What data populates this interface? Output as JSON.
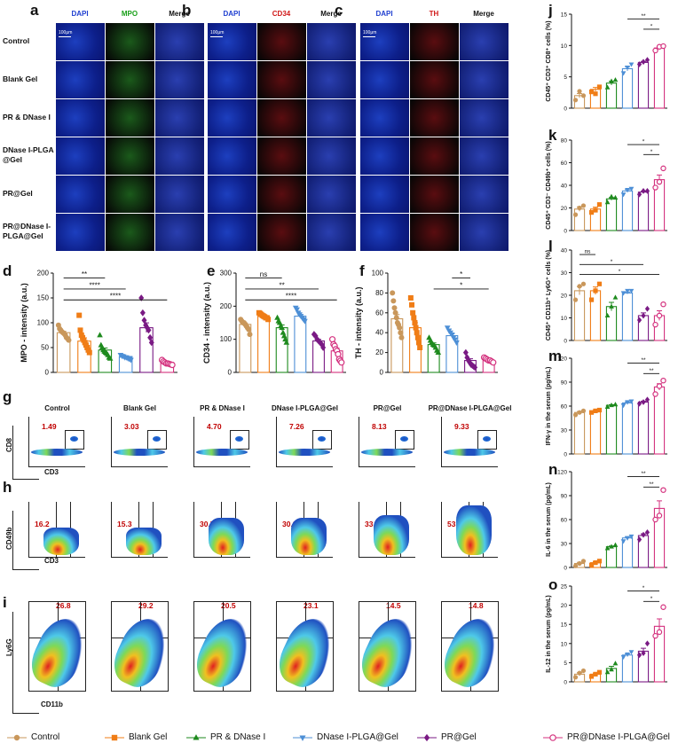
{
  "panel_letters": {
    "a": "a",
    "b": "b",
    "c": "c",
    "d": "d",
    "e": "e",
    "f": "f",
    "g": "g",
    "h": "h",
    "i": "i",
    "j": "j",
    "k": "k",
    "l": "l",
    "m": "m",
    "n": "n",
    "o": "o"
  },
  "micro": {
    "rows": [
      "Control",
      "Blank Gel",
      "PR & DNase I",
      "DNase I-PLGA\n@Gel",
      "PR@Gel",
      "PR@DNase I-\nPLGA@Gel"
    ],
    "scale_bar": "100μm",
    "panels": [
      {
        "letter": "a",
        "headers": [
          "DAPI",
          "MPO",
          "Merge"
        ],
        "header_colors": [
          "#1f3fd0",
          "#1aa01a",
          "#111111"
        ],
        "marker_color": "#1b5a1b"
      },
      {
        "letter": "b",
        "headers": [
          "DAPI",
          "CD34",
          "Merge"
        ],
        "header_colors": [
          "#1f3fd0",
          "#d01818",
          "#111111"
        ],
        "marker_color": "#5a0d10"
      },
      {
        "letter": "c",
        "headers": [
          "DAPI",
          "TH",
          "Merge"
        ],
        "header_colors": [
          "#1f3fd0",
          "#d01818",
          "#111111"
        ],
        "marker_color": "#5a0d10"
      }
    ]
  },
  "colors": [
    "#c9975b",
    "#f07d16",
    "#1e8a1e",
    "#4d8fd6",
    "#7a1a84",
    "#d4317e"
  ],
  "legend": {
    "items": [
      "Control",
      "Blank Gel",
      "PR & DNase I",
      "DNase I-PLGA@Gel",
      "PR@Gel",
      "PR@DNase I-PLGA@Gel"
    ],
    "markers": [
      "circle",
      "square",
      "triangle-up",
      "triangle-down",
      "diamond",
      "circle-open"
    ]
  },
  "flow": {
    "groups": [
      "Control",
      "Blank Gel",
      "PR & DNase I",
      "DNase I-PLGA@Gel",
      "PR@Gel",
      "PR@DNase I-PLGA@Gel"
    ],
    "g": {
      "values": [
        "1.49",
        "3.03",
        "4.70",
        "7.26",
        "8.13",
        "9.33"
      ],
      "xlabel": "CD3",
      "ylabel": "CD8"
    },
    "h": {
      "values": [
        "16.2",
        "15.3",
        "30.7",
        "30.9",
        "33.3",
        "53.9"
      ],
      "xlabel": "CD3",
      "ylabel": "CD49b"
    },
    "i": {
      "values": [
        "26.8",
        "29.2",
        "20.5",
        "23.1",
        "14.5",
        "14.8"
      ],
      "xlabel": "CD11b",
      "ylabel": "Ly6G"
    }
  },
  "chart_data": [
    {
      "id": "d",
      "type": "bar",
      "ylabel": "MPO - intensity (a.u.)",
      "ylim": [
        0,
        200
      ],
      "yticks": [
        0,
        50,
        100,
        150,
        200
      ],
      "values": [
        80,
        63,
        45,
        32,
        90,
        20
      ],
      "points": [
        [
          95,
          88,
          85,
          82,
          80,
          78,
          75,
          70,
          68,
          65
        ],
        [
          115,
          85,
          75,
          70,
          65,
          60,
          55,
          50,
          45,
          40
        ],
        [
          75,
          55,
          50,
          45,
          42,
          40,
          38,
          35,
          30,
          28
        ],
        [
          35,
          33,
          32,
          30,
          30,
          28,
          27,
          25
        ],
        [
          150,
          120,
          105,
          95,
          90,
          85,
          70,
          60
        ],
        [
          25,
          22,
          20,
          18,
          18,
          17,
          16,
          15
        ]
      ],
      "sig": [
        {
          "from": 0,
          "to": 2,
          "label": "**"
        },
        {
          "from": 0,
          "to": 3,
          "label": "****"
        },
        {
          "from": 0,
          "to": 5,
          "label": "****"
        }
      ]
    },
    {
      "id": "e",
      "type": "bar",
      "ylabel": "CD34 - intensity (a.u.)",
      "ylim": [
        0,
        300
      ],
      "yticks": [
        0,
        100,
        200,
        300
      ],
      "values": [
        145,
        170,
        135,
        170,
        95,
        65
      ],
      "points": [
        [
          160,
          155,
          150,
          150,
          145,
          140,
          135,
          130,
          115
        ],
        [
          180,
          178,
          175,
          172,
          170,
          168,
          165,
          165,
          160
        ],
        [
          165,
          155,
          150,
          140,
          135,
          120,
          110,
          100,
          90
        ],
        [
          195,
          190,
          180,
          175,
          170,
          165,
          160,
          155
        ],
        [
          115,
          110,
          100,
          95,
          90,
          85,
          75
        ],
        [
          100,
          85,
          80,
          70,
          65,
          55,
          40,
          35,
          30
        ]
      ],
      "sig": [
        {
          "from": 0,
          "to": 2,
          "label": "ns"
        },
        {
          "from": 0,
          "to": 4,
          "label": "**"
        },
        {
          "from": 0,
          "to": 5,
          "label": "****"
        }
      ]
    },
    {
      "id": "f",
      "type": "bar",
      "ylabel": "TH - intensity (a.u.)",
      "ylim": [
        0,
        100
      ],
      "yticks": [
        0,
        20,
        40,
        60,
        80,
        100
      ],
      "values": [
        54,
        45,
        28,
        37,
        12,
        12
      ],
      "points": [
        [
          80,
          72,
          65,
          60,
          55,
          50,
          48,
          45,
          40,
          35
        ],
        [
          75,
          68,
          60,
          55,
          50,
          45,
          40,
          35,
          30,
          25
        ],
        [
          35,
          32,
          30,
          28,
          27,
          25,
          22,
          20
        ],
        [
          45,
          42,
          40,
          38,
          35,
          33,
          30
        ],
        [
          20,
          15,
          12,
          10,
          8,
          7,
          6,
          5
        ],
        [
          15,
          14,
          13,
          12,
          12,
          11,
          10
        ]
      ],
      "sig": [
        {
          "from": 3,
          "to": 4,
          "label": "*"
        },
        {
          "from": 2,
          "to": 5,
          "label": "*"
        }
      ]
    },
    {
      "id": "j",
      "type": "bar",
      "ylabel": "CD45⁺ CD3⁺ CD8⁺ cells (%)",
      "ylim": [
        0,
        15
      ],
      "yticks": [
        0,
        5,
        10,
        15
      ],
      "values": [
        2,
        3,
        4,
        6.3,
        7.3,
        9.6
      ],
      "points": [
        [
          1.3,
          2.7,
          2
        ],
        [
          2.6,
          2.3,
          3.4
        ],
        [
          3.3,
          4.3,
          4.5
        ],
        [
          5.6,
          6.5,
          7
        ],
        [
          7,
          7.4,
          7.7
        ],
        [
          9.2,
          9.8,
          9.9
        ]
      ],
      "sig": [
        {
          "from": 3,
          "to": 5,
          "label": "**"
        },
        {
          "from": 4,
          "to": 5,
          "label": "*"
        }
      ]
    },
    {
      "id": "k",
      "type": "bar",
      "ylabel": "CD45⁺ CD3⁻ CD49b⁺ cells (%)",
      "ylim": [
        0,
        80
      ],
      "yticks": [
        0,
        20,
        40,
        60,
        80
      ],
      "values": [
        19,
        19,
        28,
        35,
        34,
        45
      ],
      "points": [
        [
          14,
          20,
          22
        ],
        [
          16,
          18,
          23
        ],
        [
          25,
          30,
          29
        ],
        [
          32,
          36,
          37
        ],
        [
          32,
          35,
          35
        ],
        [
          38,
          43,
          55
        ]
      ],
      "sig": [
        {
          "from": 3,
          "to": 5,
          "label": "*"
        },
        {
          "from": 4,
          "to": 5,
          "label": "*"
        }
      ]
    },
    {
      "id": "l",
      "type": "bar",
      "ylabel": "CD45⁺ CD11b⁺ Ly6G⁺ cells (%)",
      "ylim": [
        0,
        40
      ],
      "yticks": [
        0,
        10,
        20,
        30,
        40
      ],
      "values": [
        22,
        22,
        15,
        21,
        11,
        11
      ],
      "points": [
        [
          18,
          24,
          25
        ],
        [
          18,
          22,
          25
        ],
        [
          11,
          15,
          19
        ],
        [
          21,
          22,
          22
        ],
        [
          9,
          11,
          14
        ],
        [
          7,
          11,
          16
        ]
      ],
      "sig": [
        {
          "from": 0,
          "to": 1,
          "label": "ns"
        },
        {
          "from": 0,
          "to": 4,
          "label": "*"
        },
        {
          "from": 0,
          "to": 5,
          "label": "*"
        }
      ]
    },
    {
      "id": "m",
      "type": "bar",
      "ylabel": "IFN-γ in the serum  (pg/mL)",
      "ylim": [
        0,
        120
      ],
      "yticks": [
        0,
        30,
        60,
        90,
        120
      ],
      "values": [
        52,
        54,
        61,
        64,
        65,
        84
      ],
      "points": [
        [
          49,
          52,
          54
        ],
        [
          52,
          54,
          55
        ],
        [
          59,
          61,
          62
        ],
        [
          61,
          65,
          66
        ],
        [
          63,
          65,
          68
        ],
        [
          75,
          85,
          92
        ]
      ],
      "sig": [
        {
          "from": 3,
          "to": 5,
          "label": "**"
        },
        {
          "from": 4,
          "to": 5,
          "label": "**"
        }
      ]
    },
    {
      "id": "n",
      "type": "bar",
      "ylabel": "IL-6 in the serum (pg/mL)",
      "ylim": [
        0,
        120
      ],
      "yticks": [
        0,
        30,
        60,
        90,
        120
      ],
      "values": [
        5,
        6,
        26,
        37,
        40,
        74
      ],
      "points": [
        [
          2,
          5,
          8
        ],
        [
          3,
          6,
          8
        ],
        [
          24,
          26,
          28
        ],
        [
          33,
          37,
          39
        ],
        [
          35,
          41,
          44
        ],
        [
          60,
          65,
          97
        ]
      ],
      "sig": [
        {
          "from": 3,
          "to": 5,
          "label": "**"
        },
        {
          "from": 4,
          "to": 5,
          "label": "**"
        }
      ]
    },
    {
      "id": "o",
      "type": "bar",
      "ylabel": "IL-12 in the serum (pg/mL)",
      "ylim": [
        0,
        25
      ],
      "yticks": [
        0,
        5,
        10,
        15,
        20,
        25
      ],
      "values": [
        2,
        2,
        3.5,
        7,
        8,
        14.5
      ],
      "points": [
        [
          1.2,
          2.3,
          2.9
        ],
        [
          1.4,
          2,
          2.5
        ],
        [
          2.5,
          3.2,
          4.8
        ],
        [
          6.5,
          7.2,
          7.8
        ],
        [
          7,
          7.5,
          10
        ],
        [
          12,
          13,
          19.5
        ]
      ],
      "sig": [
        {
          "from": 3,
          "to": 5,
          "label": "*"
        },
        {
          "from": 4,
          "to": 5,
          "label": "*"
        }
      ]
    }
  ]
}
